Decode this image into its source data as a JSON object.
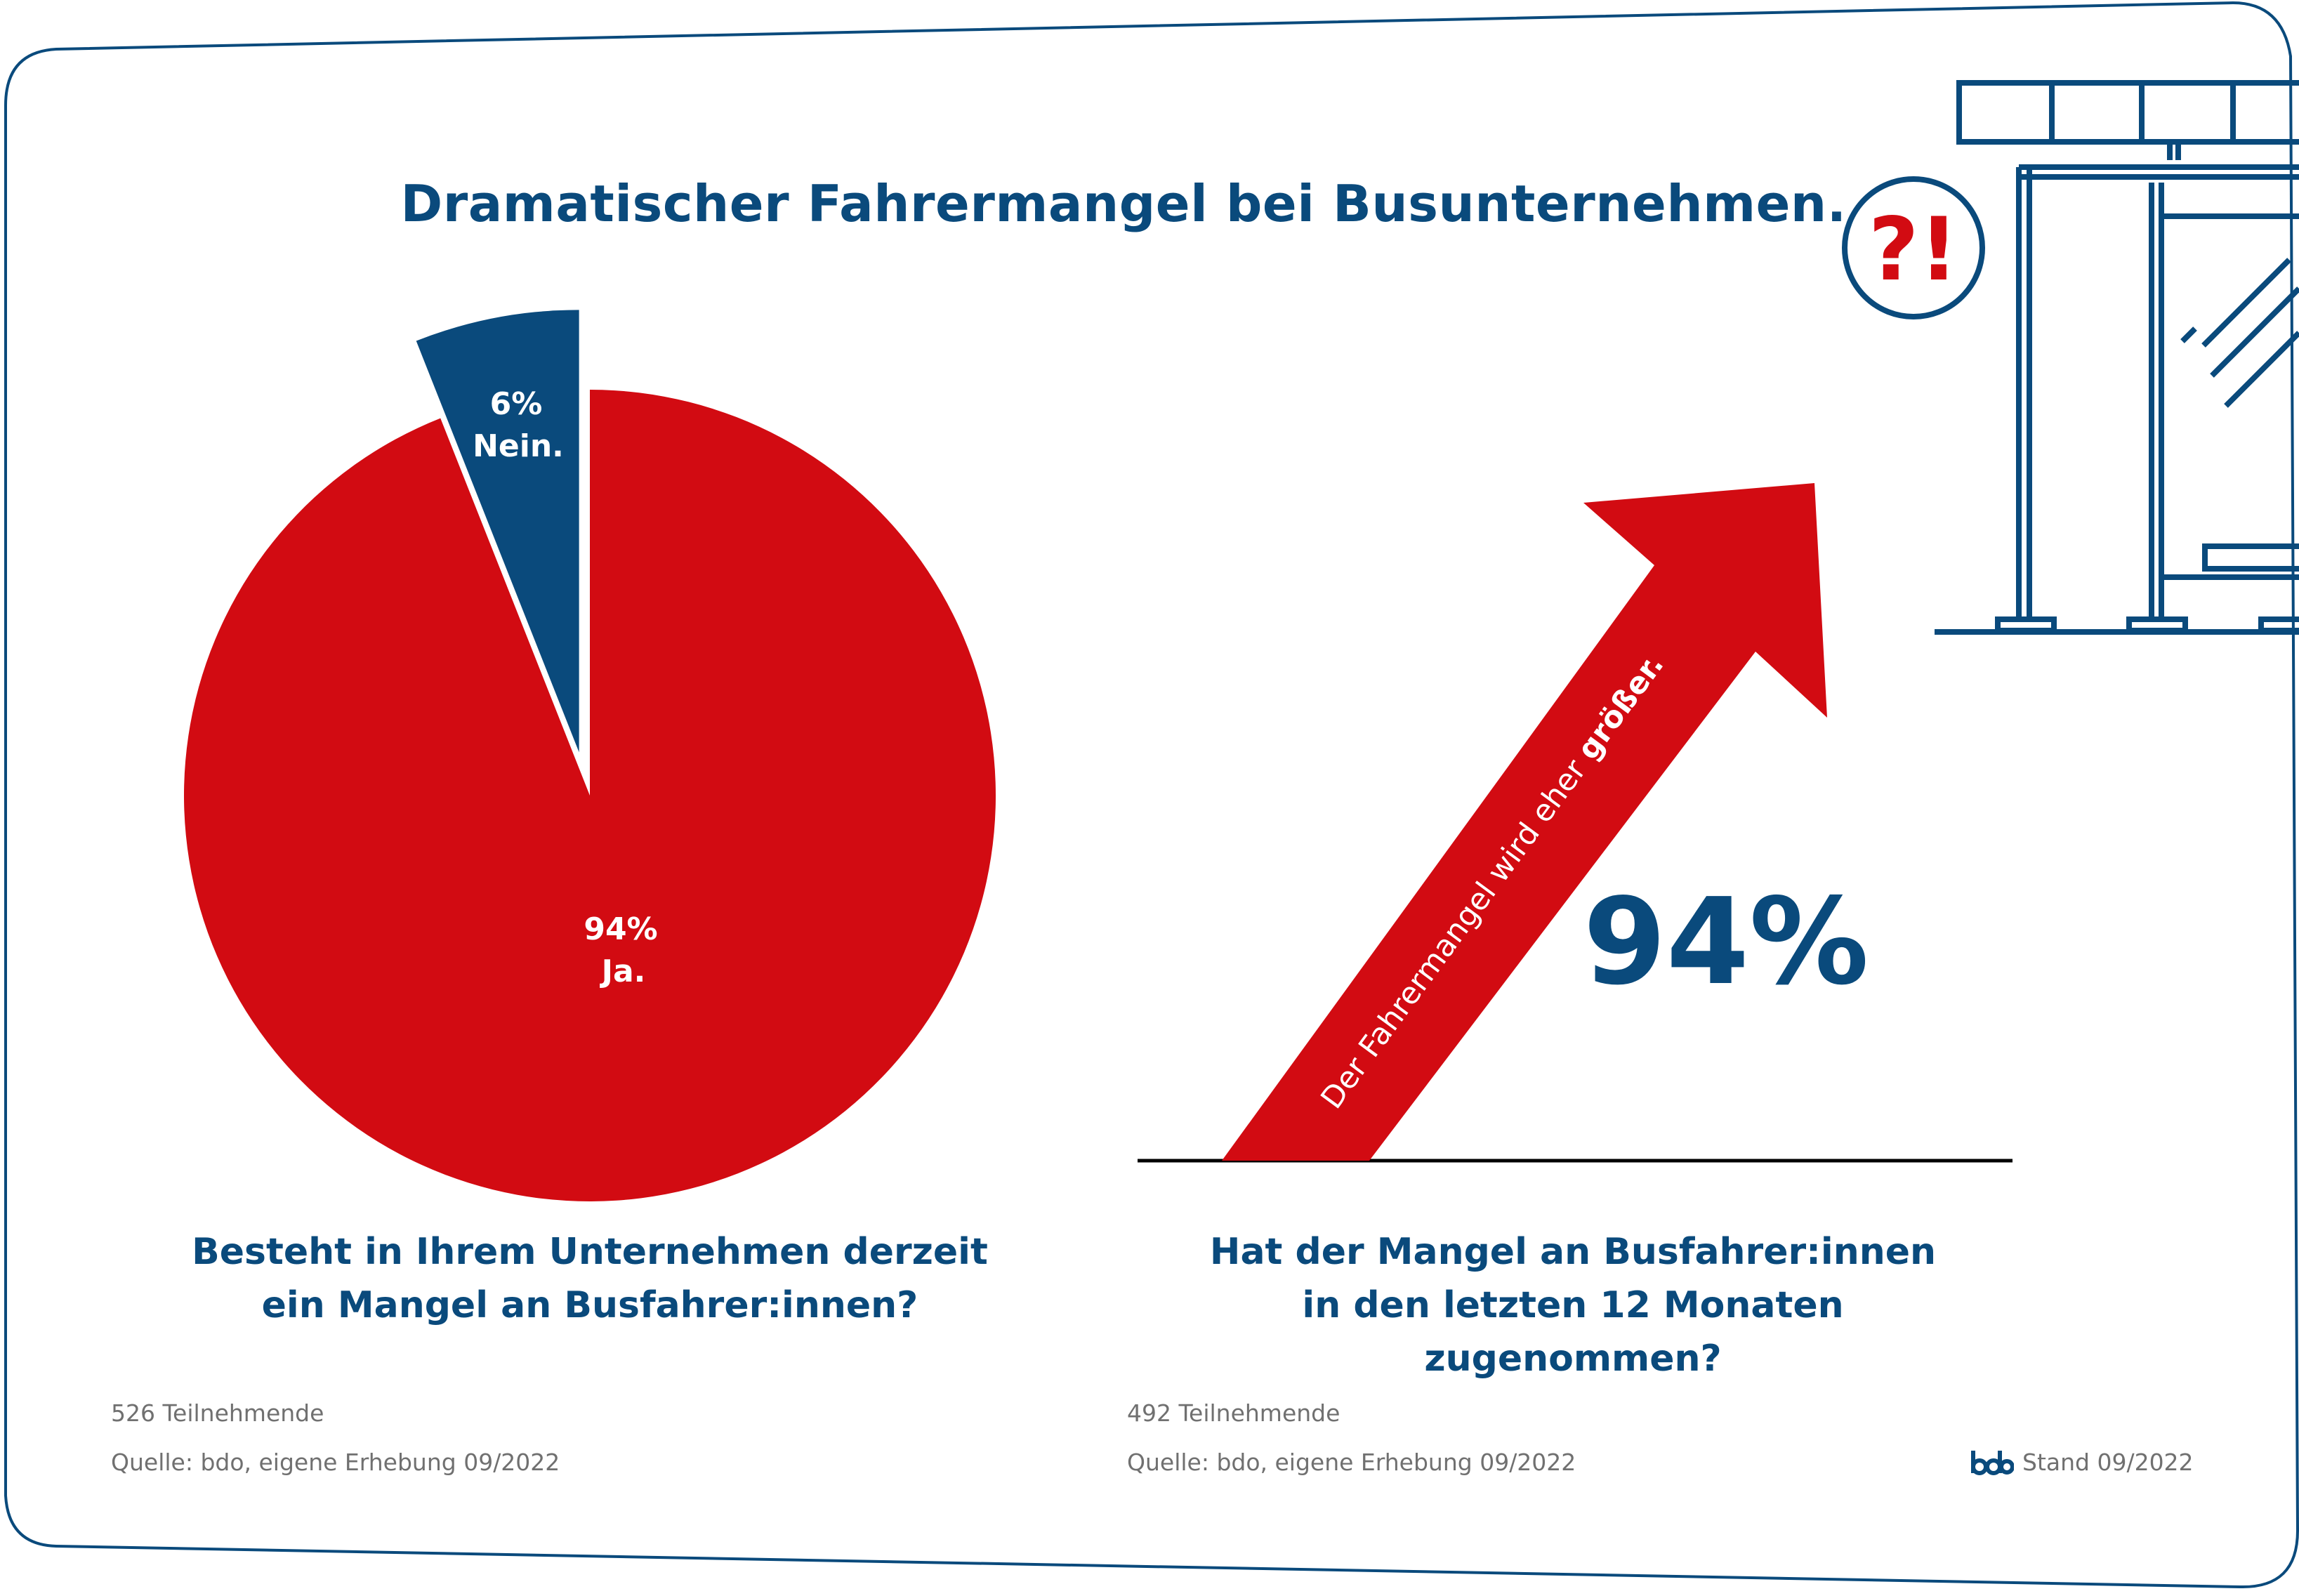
{
  "title": "Dramatischer Fahrermangel bei Busunternehmen.",
  "chart_data": [
    {
      "type": "pie",
      "question_line1": "Besteht in Ihrem Unternehmen derzeit",
      "question_line2": "ein Mangel an Busfahrer:innen?",
      "categories": [
        "Ja.",
        "Nein."
      ],
      "values": [
        94,
        6
      ],
      "slices": [
        {
          "label": "Ja.",
          "value": 94,
          "value_label": "94%",
          "color": "#d20b12"
        },
        {
          "label": "Nein.",
          "value": 6,
          "value_label": "6%",
          "color": "#0a4a7c"
        }
      ],
      "participants": "526 Teilnehmende",
      "source": "Quelle: bdo, eigene Erhebung 09/2022"
    },
    {
      "type": "bar",
      "arrow_text_prefix": "Der Fahrermangel wird eher",
      "arrow_text_bold": "größer.",
      "value": 94,
      "value_label": "94%",
      "question_line1": "Hat der Mangel an Busfahrer:innen",
      "question_line2": "in den letzten 12 Monaten zugenommen?",
      "participants": "492 Teilnehmende",
      "source": "Quelle: bdo, eigene Erhebung 09/2022"
    }
  ],
  "colors": {
    "red": "#d20b12",
    "blue": "#0a4a7c",
    "grey": "#707070"
  },
  "icons": {
    "illustration": "bus-stop-icon",
    "alert": "question-exclamation-icon"
  },
  "alert_symbol": "?!",
  "logo": "bdo",
  "stand": "Stand 09/2022"
}
